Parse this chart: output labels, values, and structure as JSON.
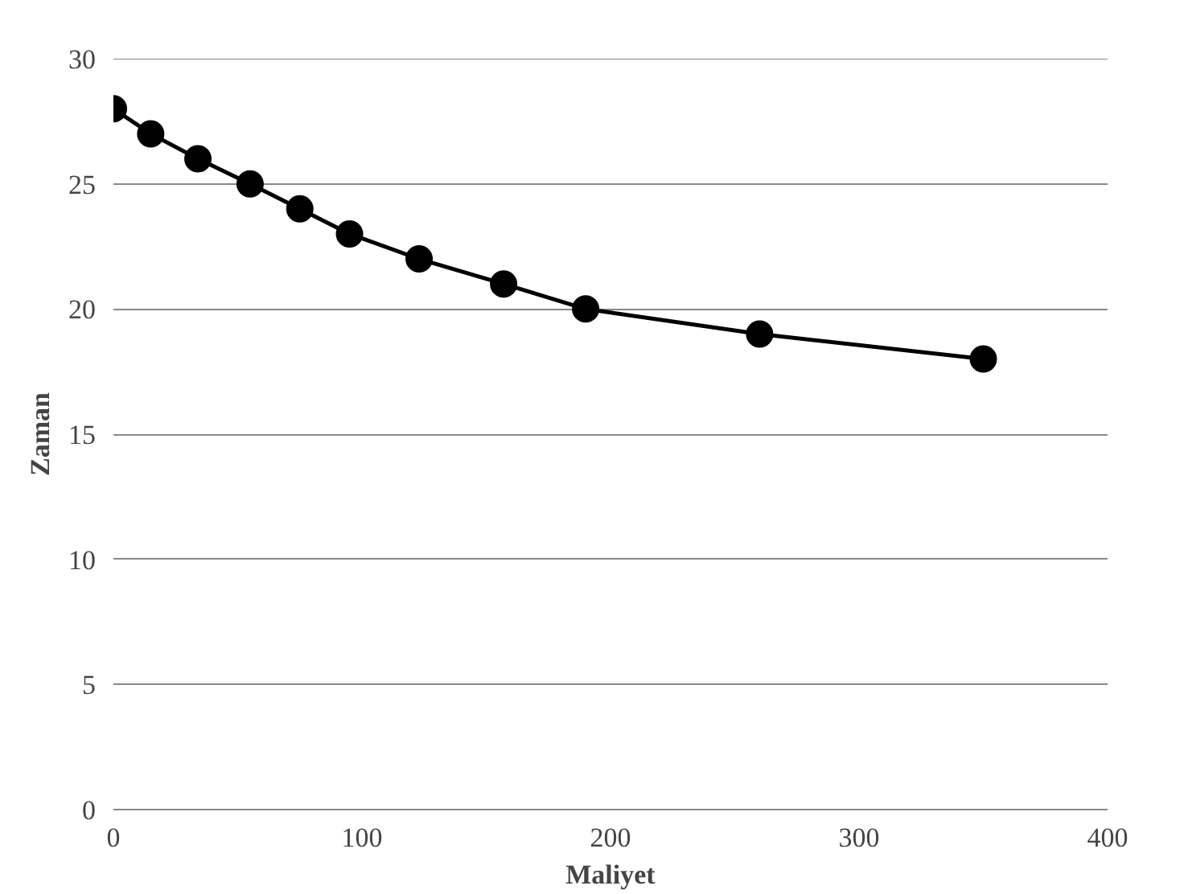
{
  "chart_data": {
    "type": "line",
    "xlabel": "Maliyet",
    "ylabel": "Zaman",
    "x": [
      0,
      15,
      34,
      55,
      75,
      95,
      123,
      157,
      190,
      260,
      350
    ],
    "series": [
      {
        "color": "#000000",
        "values": [
          28,
          27,
          26,
          25,
          24,
          23,
          22,
          21,
          20,
          19,
          18
        ]
      }
    ],
    "xlim": [
      0,
      400
    ],
    "xticks": [
      0,
      100,
      200,
      300,
      400
    ],
    "ylim": [
      0,
      30
    ],
    "yticks": [
      0,
      5,
      10,
      15,
      20,
      25,
      30
    ],
    "grid": "y",
    "marker": "circle",
    "line_style": "solid"
  }
}
